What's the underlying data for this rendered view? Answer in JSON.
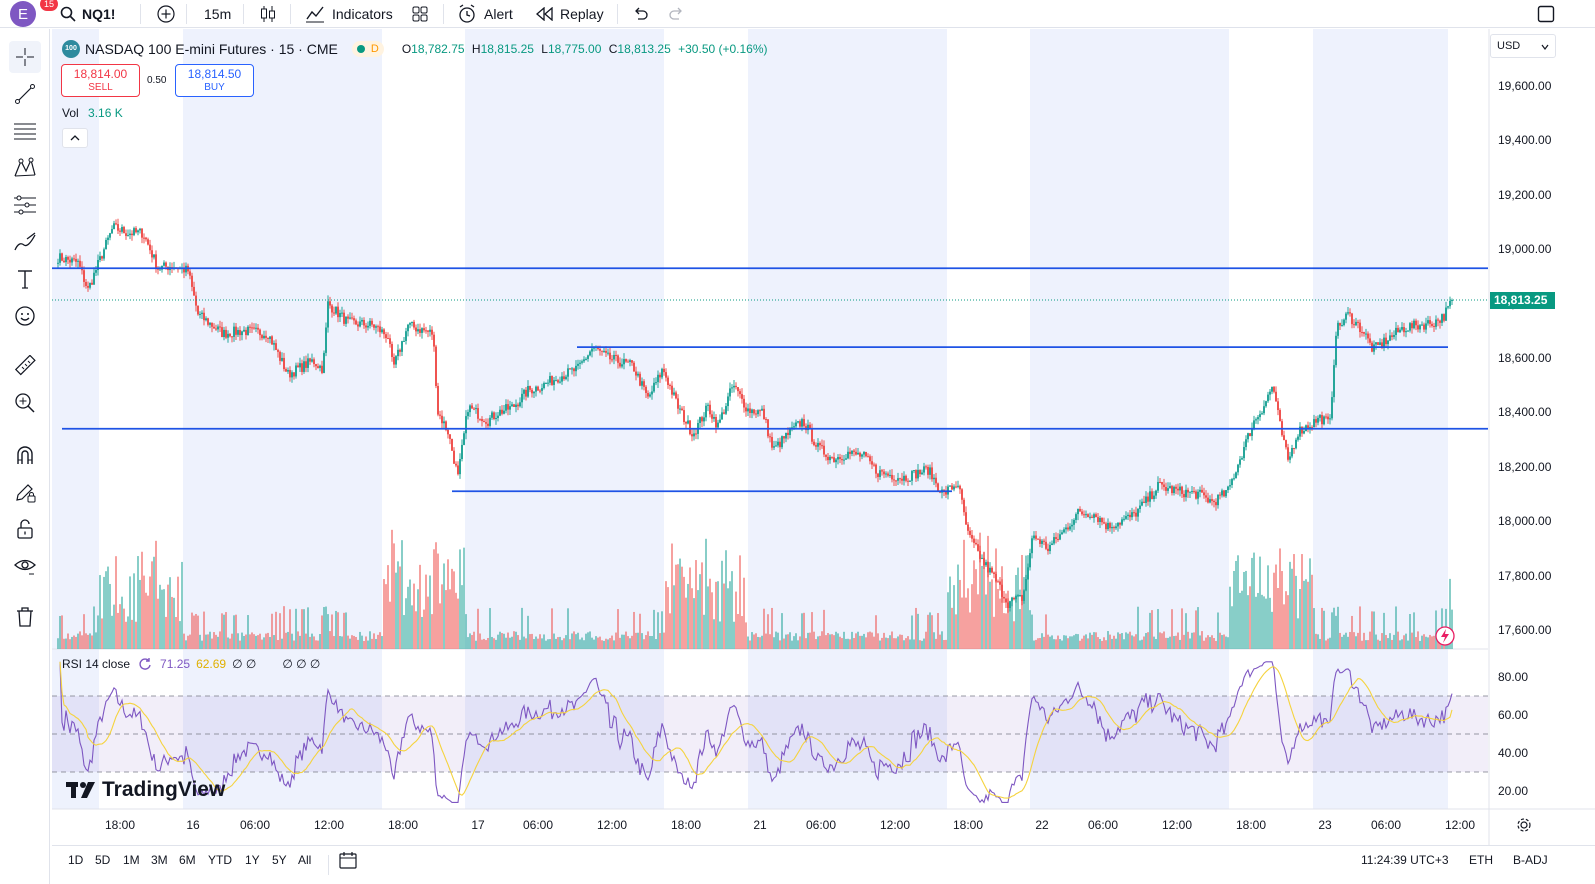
{
  "topbar": {
    "avatar_letter": "E",
    "avatar_badge": "15",
    "symbol": "NQ1!",
    "interval": "15m",
    "indicators_label": "Indicators",
    "alert_label": "Alert",
    "replay_label": "Replay",
    "icons": [
      "search-icon",
      "add-symbol-icon",
      "candles-icon",
      "indicators-icon",
      "templates-icon",
      "alert-icon",
      "replay-icon",
      "undo-icon",
      "redo-icon",
      "fullscreen-icon"
    ]
  },
  "legend": {
    "badge": "100",
    "title": "NASDAQ 100 E-mini Futures · 15 · CME",
    "status_letter": "D",
    "o_label": "O",
    "o_value": "18,782.75",
    "h_label": "H",
    "h_value": "18,815.25",
    "l_label": "L",
    "l_value": "18,775.00",
    "c_label": "C",
    "c_value": "18,813.25",
    "change": "+30.50 (+0.16%)",
    "sell_price": "18,814.00",
    "sell_label": "SELL",
    "spread": "0.50",
    "buy_price": "18,814.50",
    "buy_label": "BUY",
    "vol_label": "Vol",
    "vol_value": "3.16 K"
  },
  "rsi_legend": {
    "label": "RSI 14 close",
    "value1": "71.25",
    "value2": "62.69",
    "extra1": "∅ ∅",
    "extra2": "∅ ∅ ∅"
  },
  "price_axis": {
    "currency": "USD",
    "ticks": [
      "19,600.00",
      "19,400.00",
      "19,200.00",
      "19,000.00",
      "18,800.00",
      "18,600.00",
      "18,400.00",
      "18,200.00",
      "18,000.00",
      "17,800.00",
      "17,600.00"
    ],
    "last_price": "18,813.25"
  },
  "rsi_axis": {
    "ticks": [
      "80.00",
      "60.00",
      "40.00",
      "20.00"
    ]
  },
  "time_axis": {
    "labels": [
      "18:00",
      "16",
      "06:00",
      "12:00",
      "18:00",
      "17",
      "06:00",
      "12:00",
      "18:00",
      "21",
      "06:00",
      "12:00",
      "18:00",
      "22",
      "06:00",
      "12:00",
      "18:00",
      "23",
      "06:00",
      "12:00"
    ]
  },
  "bottombar": {
    "ranges": [
      "1D",
      "5D",
      "1M",
      "3M",
      "6M",
      "YTD",
      "1Y",
      "5Y",
      "All"
    ],
    "time": "11:24:39 UTC+3",
    "session": "ETH",
    "adjust": "B-ADJ"
  },
  "watermark": "TradingView",
  "colors": {
    "up": "#26a69a",
    "down": "#ef5350",
    "accent": "#2962ff",
    "session_bg": "#eef2fd",
    "line": "#1e53e5",
    "rsi": "#7e57c2",
    "rsi_ma": "#f5d33e"
  },
  "chart_data": {
    "type": "candlestick",
    "symbol": "NQ1!",
    "title": "NASDAQ 100 E-mini Futures · 15 · CME",
    "ylim": [
      17560,
      19700
    ],
    "last": 18813.25,
    "horizontal_lines": [
      18930,
      18640,
      18340,
      18110
    ],
    "path": [
      [
        0,
        18970
      ],
      [
        20,
        18950
      ],
      [
        30,
        18850
      ],
      [
        45,
        18990
      ],
      [
        55,
        19080
      ],
      [
        70,
        19060
      ],
      [
        85,
        19060
      ],
      [
        100,
        18930
      ],
      [
        115,
        18940
      ],
      [
        130,
        18920
      ],
      [
        140,
        18760
      ],
      [
        165,
        18690
      ],
      [
        185,
        18700
      ],
      [
        210,
        18690
      ],
      [
        230,
        18540
      ],
      [
        255,
        18590
      ],
      [
        265,
        18560
      ],
      [
        270,
        18800
      ],
      [
        290,
        18730
      ],
      [
        315,
        18720
      ],
      [
        330,
        18680
      ],
      [
        335,
        18560
      ],
      [
        350,
        18720
      ],
      [
        375,
        18690
      ],
      [
        380,
        18400
      ],
      [
        390,
        18330
      ],
      [
        400,
        18160
      ],
      [
        410,
        18420
      ],
      [
        430,
        18370
      ],
      [
        440,
        18400
      ],
      [
        455,
        18420
      ],
      [
        470,
        18480
      ],
      [
        485,
        18500
      ],
      [
        500,
        18530
      ],
      [
        520,
        18560
      ],
      [
        535,
        18640
      ],
      [
        550,
        18600
      ],
      [
        575,
        18570
      ],
      [
        590,
        18450
      ],
      [
        605,
        18560
      ],
      [
        620,
        18420
      ],
      [
        635,
        18320
      ],
      [
        650,
        18420
      ],
      [
        660,
        18350
      ],
      [
        675,
        18500
      ],
      [
        690,
        18410
      ],
      [
        705,
        18400
      ],
      [
        715,
        18260
      ],
      [
        730,
        18320
      ],
      [
        745,
        18370
      ],
      [
        760,
        18270
      ],
      [
        775,
        18230
      ],
      [
        790,
        18250
      ],
      [
        805,
        18240
      ],
      [
        820,
        18180
      ],
      [
        845,
        18160
      ],
      [
        870,
        18190
      ],
      [
        885,
        18100
      ],
      [
        900,
        18140
      ],
      [
        910,
        17950
      ],
      [
        925,
        17850
      ],
      [
        935,
        17800
      ],
      [
        950,
        17700
      ],
      [
        965,
        17720
      ],
      [
        975,
        17950
      ],
      [
        990,
        17900
      ],
      [
        1005,
        17960
      ],
      [
        1020,
        18030
      ],
      [
        1035,
        18030
      ],
      [
        1050,
        17980
      ],
      [
        1075,
        18020
      ],
      [
        1090,
        18080
      ],
      [
        1100,
        18130
      ],
      [
        1120,
        18110
      ],
      [
        1140,
        18100
      ],
      [
        1155,
        18070
      ],
      [
        1170,
        18110
      ],
      [
        1185,
        18260
      ],
      [
        1195,
        18360
      ],
      [
        1205,
        18420
      ],
      [
        1215,
        18500
      ],
      [
        1222,
        18350
      ],
      [
        1230,
        18220
      ],
      [
        1240,
        18330
      ],
      [
        1250,
        18350
      ],
      [
        1262,
        18380
      ],
      [
        1272,
        18360
      ],
      [
        1278,
        18700
      ],
      [
        1290,
        18760
      ],
      [
        1305,
        18700
      ],
      [
        1315,
        18630
      ],
      [
        1330,
        18670
      ],
      [
        1345,
        18710
      ],
      [
        1360,
        18720
      ],
      [
        1375,
        18730
      ],
      [
        1385,
        18750
      ],
      [
        1395,
        18813
      ]
    ],
    "rsi_series": {
      "name": "RSI 14 close",
      "last": 71.25,
      "ma_last": 62.69,
      "levels": [
        70,
        50,
        30
      ]
    },
    "volume_last": "3.16 K"
  }
}
